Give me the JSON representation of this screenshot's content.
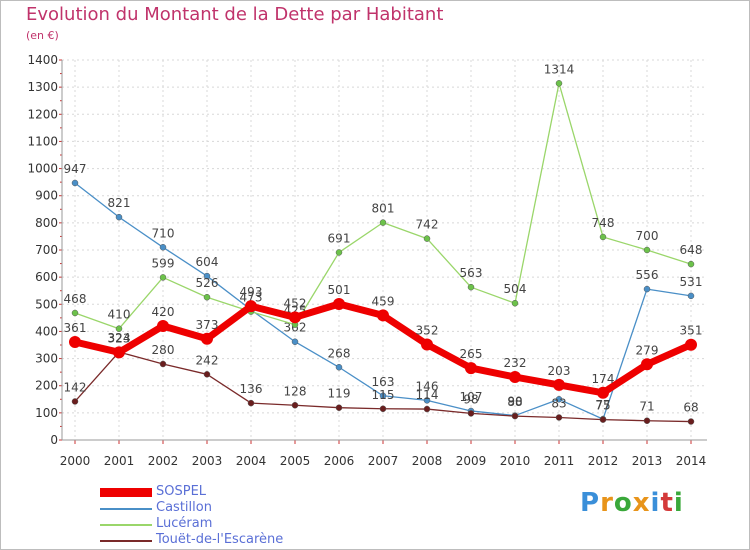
{
  "title": "Evolution du Montant de la Dette par Habitant",
  "subtitle": "(en €)",
  "logo": {
    "text": "Proxiti",
    "colors": [
      "#3a8fd9",
      "#e8941a",
      "#3aa83a",
      "#e8941a",
      "#3a8fd9",
      "#d43a3a",
      "#3aa83a"
    ]
  },
  "chart_data": {
    "type": "line",
    "title": "Evolution du Montant de la Dette par Habitant",
    "ylabel": "(en €)",
    "xlabel": "",
    "ylim": [
      0,
      1400
    ],
    "yticks": [
      0,
      100,
      200,
      300,
      400,
      500,
      600,
      700,
      800,
      900,
      1000,
      1100,
      1200,
      1300,
      1400
    ],
    "categories": [
      "2000",
      "2001",
      "2002",
      "2003",
      "2004",
      "2005",
      "2006",
      "2007",
      "2008",
      "2009",
      "2010",
      "2011",
      "2012",
      "2013",
      "2014"
    ],
    "grid": true,
    "legend_position": "bottom-left",
    "series": [
      {
        "name": "Castillon",
        "color": "#4a8fc7",
        "marker": "#4a8fc7",
        "width": 1.3,
        "values": [
          947,
          821,
          710,
          604,
          480,
          362,
          268,
          163,
          146,
          107,
          90,
          150,
          77,
          556,
          531
        ],
        "labels": [
          "947",
          "821",
          "710",
          "604",
          "",
          "362",
          "268",
          "163",
          "146",
          "107",
          "90",
          "",
          "77",
          "556",
          "531"
        ]
      },
      {
        "name": "Lucéram",
        "color": "#9ad66a",
        "marker": "#6cc24a",
        "width": 1.3,
        "values": [
          468,
          410,
          599,
          526,
          473,
          425,
          691,
          801,
          742,
          563,
          504,
          1314,
          748,
          700,
          648
        ],
        "labels": [
          "468",
          "410",
          "599",
          "526",
          "473",
          "425",
          "691",
          "801",
          "742",
          "563",
          "504",
          "1314",
          "748",
          "700",
          "648"
        ]
      },
      {
        "name": "Touët-de-l'Escarène",
        "color": "#7a2a2a",
        "marker": "#6a1e1e",
        "width": 1.3,
        "values": [
          142,
          324,
          280,
          242,
          136,
          128,
          119,
          115,
          114,
          98,
          88,
          83,
          75,
          71,
          68
        ],
        "labels": [
          "142",
          "324",
          "280",
          "242",
          "136",
          "128",
          "119",
          "115",
          "114",
          "98",
          "88",
          "83",
          "75",
          "71",
          "68"
        ]
      },
      {
        "name": "SOSPEL",
        "color": "#ee0000",
        "marker": "#ee0000",
        "width": 7,
        "values": [
          361,
          323,
          420,
          373,
          493,
          452,
          501,
          459,
          352,
          265,
          232,
          203,
          174,
          279,
          351
        ],
        "labels": [
          "361",
          "323",
          "420",
          "373",
          "493",
          "452",
          "501",
          "459",
          "352",
          "265",
          "232",
          "203",
          "174",
          "279",
          "351"
        ]
      }
    ]
  },
  "legend": [
    {
      "name": "SOSPEL",
      "color": "#ee0000",
      "thick": true
    },
    {
      "name": "Castillon",
      "color": "#4a8fc7",
      "thick": false
    },
    {
      "name": "Lucéram",
      "color": "#9ad66a",
      "thick": false
    },
    {
      "name": "Touët-de-l'Escarène",
      "color": "#7a2a2a",
      "thick": false
    }
  ]
}
